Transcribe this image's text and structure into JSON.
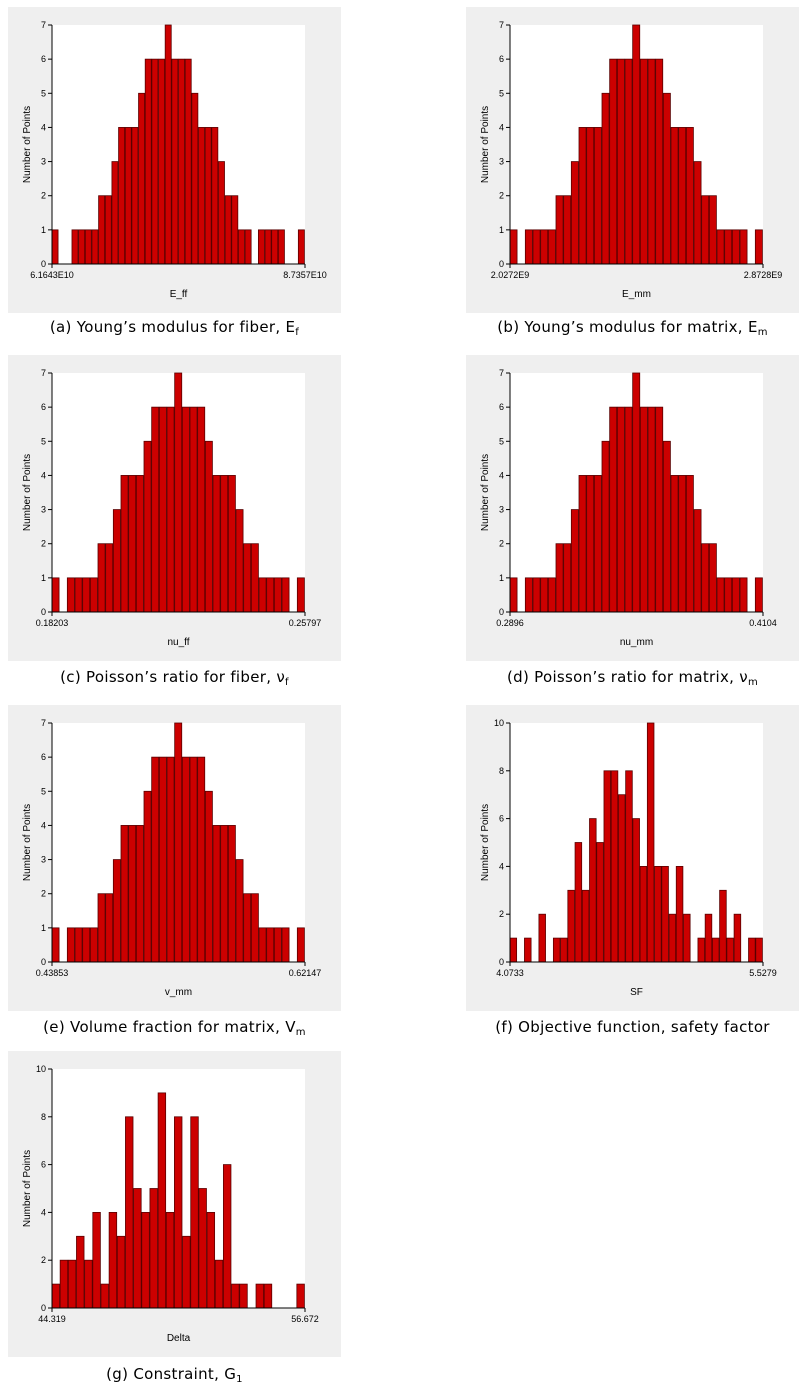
{
  "chart_data": [
    {
      "id": "a",
      "type": "bar",
      "ylabel": "Number of Points",
      "xlabel": "E_ff",
      "xmin_label": "6.1643E10",
      "xmax_label": "8.7357E10",
      "ylim": [
        0,
        7
      ],
      "yticks": [
        0,
        1,
        2,
        3,
        4,
        5,
        6,
        7
      ],
      "values": [
        1,
        0,
        0,
        1,
        1,
        1,
        1,
        2,
        2,
        3,
        4,
        4,
        4,
        5,
        6,
        6,
        6,
        7,
        6,
        6,
        6,
        5,
        4,
        4,
        4,
        3,
        2,
        2,
        1,
        1,
        0,
        1,
        1,
        1,
        1,
        0,
        0,
        1
      ],
      "caption": {
        "text": "(a) Young’s modulus for fiber, E",
        "sub": "f"
      }
    },
    {
      "id": "b",
      "type": "bar",
      "ylabel": "Number of Points",
      "xlabel": "E_mm",
      "xmin_label": "2.0272E9",
      "xmax_label": "2.8728E9",
      "ylim": [
        0,
        7
      ],
      "yticks": [
        0,
        1,
        2,
        3,
        4,
        5,
        6,
        7
      ],
      "values": [
        1,
        0,
        1,
        1,
        1,
        1,
        2,
        2,
        3,
        4,
        4,
        4,
        5,
        6,
        6,
        6,
        7,
        6,
        6,
        6,
        5,
        4,
        4,
        4,
        3,
        2,
        2,
        1,
        1,
        1,
        1,
        0,
        1
      ],
      "caption": {
        "text": "(b) Young’s modulus for matrix, E",
        "sub": "m"
      }
    },
    {
      "id": "c",
      "type": "bar",
      "ylabel": "Number of Points",
      "xlabel": "nu_ff",
      "xmin_label": "0.18203",
      "xmax_label": "0.25797",
      "ylim": [
        0,
        7
      ],
      "yticks": [
        0,
        1,
        2,
        3,
        4,
        5,
        6,
        7
      ],
      "values": [
        1,
        0,
        1,
        1,
        1,
        1,
        2,
        2,
        3,
        4,
        4,
        4,
        5,
        6,
        6,
        6,
        7,
        6,
        6,
        6,
        5,
        4,
        4,
        4,
        3,
        2,
        2,
        1,
        1,
        1,
        1,
        0,
        1
      ],
      "caption": {
        "text": "(c) Poisson’s ratio for fiber, ν",
        "sub": "f"
      }
    },
    {
      "id": "d",
      "type": "bar",
      "ylabel": "Number of Points",
      "xlabel": "nu_mm",
      "xmin_label": "0.2896",
      "xmax_label": "0.4104",
      "ylim": [
        0,
        7
      ],
      "yticks": [
        0,
        1,
        2,
        3,
        4,
        5,
        6,
        7
      ],
      "values": [
        1,
        0,
        1,
        1,
        1,
        1,
        2,
        2,
        3,
        4,
        4,
        4,
        5,
        6,
        6,
        6,
        7,
        6,
        6,
        6,
        5,
        4,
        4,
        4,
        3,
        2,
        2,
        1,
        1,
        1,
        1,
        0,
        1
      ],
      "caption": {
        "text": "(d) Poisson’s ratio for matrix, ν",
        "sub": "m"
      }
    },
    {
      "id": "e",
      "type": "bar",
      "ylabel": "Number of Points",
      "xlabel": "v_mm",
      "xmin_label": "0.43853",
      "xmax_label": "0.62147",
      "ylim": [
        0,
        7
      ],
      "yticks": [
        0,
        1,
        2,
        3,
        4,
        5,
        6,
        7
      ],
      "values": [
        1,
        0,
        1,
        1,
        1,
        1,
        2,
        2,
        3,
        4,
        4,
        4,
        5,
        6,
        6,
        6,
        7,
        6,
        6,
        6,
        5,
        4,
        4,
        4,
        3,
        2,
        2,
        1,
        1,
        1,
        1,
        0,
        1
      ],
      "caption": {
        "text": "(e) Volume fraction for matrix, V",
        "sub": "m"
      }
    },
    {
      "id": "f",
      "type": "bar",
      "ylabel": "Number of Points",
      "xlabel": "SF",
      "xmin_label": "4.0733",
      "xmax_label": "5.5279",
      "ylim": [
        0,
        10
      ],
      "yticks": [
        0,
        2,
        4,
        6,
        8,
        10
      ],
      "values": [
        1,
        0,
        1,
        0,
        2,
        0,
        1,
        1,
        3,
        5,
        3,
        6,
        5,
        8,
        8,
        7,
        8,
        6,
        4,
        10,
        4,
        4,
        2,
        4,
        2,
        0,
        1,
        2,
        1,
        3,
        1,
        2,
        0,
        1,
        1
      ],
      "caption": {
        "text": "(f) Objective function, safety factor",
        "sub": ""
      }
    },
    {
      "id": "g",
      "type": "bar",
      "ylabel": "Number of Points",
      "xlabel": "Delta",
      "xmin_label": "44.319",
      "xmax_label": "56.672",
      "ylim": [
        0,
        10
      ],
      "yticks": [
        0,
        2,
        4,
        6,
        8,
        10
      ],
      "values": [
        1,
        2,
        2,
        3,
        2,
        4,
        1,
        4,
        3,
        8,
        5,
        4,
        5,
        9,
        4,
        8,
        3,
        8,
        5,
        4,
        2,
        6,
        1,
        1,
        0,
        1,
        1,
        0,
        0,
        0,
        1
      ],
      "caption": {
        "text": "(g) Constraint, G",
        "sub": "1"
      }
    }
  ]
}
